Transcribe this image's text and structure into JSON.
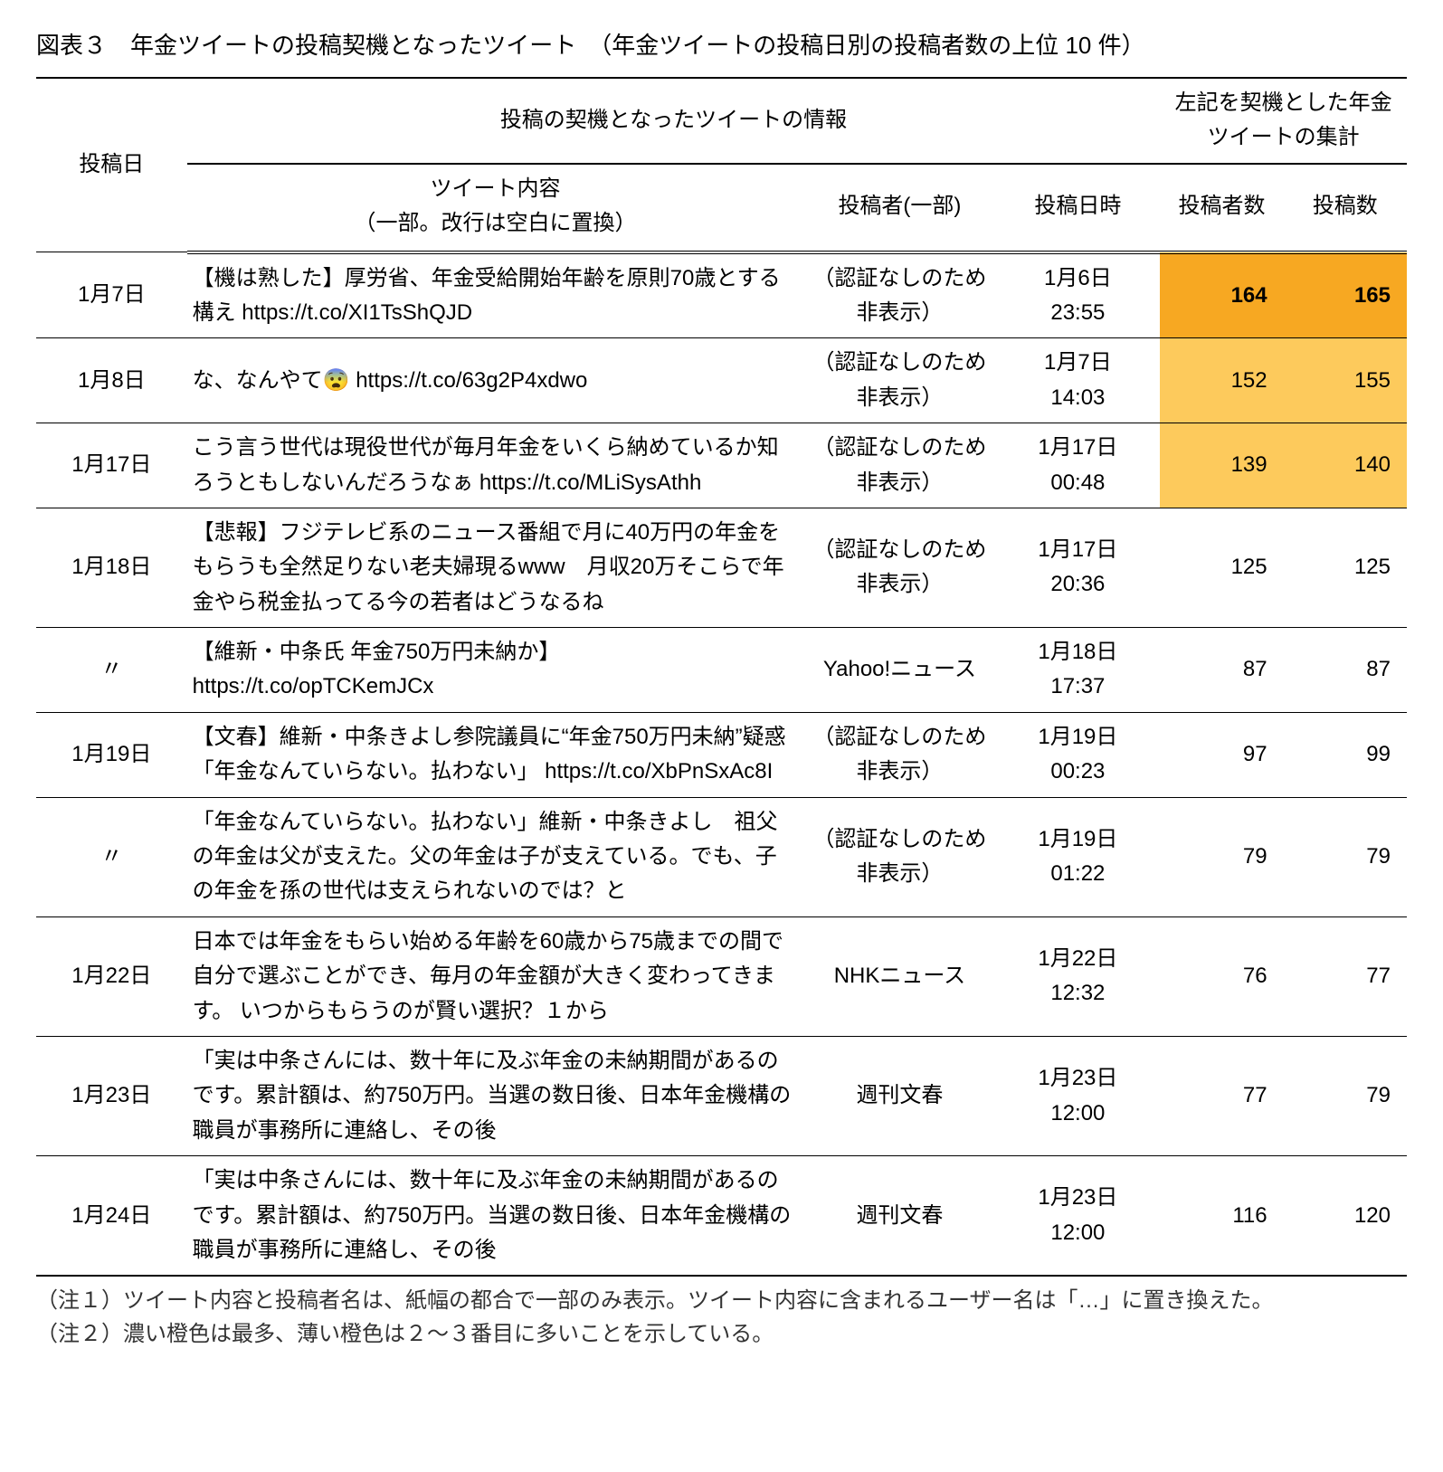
{
  "title": "図表３　年金ツイートの投稿契機となったツイート　（年金ツイートの投稿日別の投稿者数の上位 10 件）",
  "headers": {
    "post_date": "投稿日",
    "info_group": "投稿の契機となったツイートの情報",
    "stats_group": "左記を契機とした年金ツイートの集計",
    "tweet_content": "ツイート内容\n（一部。改行は空白に置換）",
    "author": "投稿者(一部)",
    "post_time": "投稿日時",
    "posters": "投稿者数",
    "posts": "投稿数"
  },
  "rows": [
    {
      "date": "1月7日",
      "tweet": "【機は熟した】厚労省、年金受給開始年齢を原則70歳とする構え https://t.co/XI1TsShQJD",
      "author": "（認証なしのため非表示）",
      "time": "1月6日\n23:55",
      "posters": "164",
      "posts": "165",
      "highlight": "dark"
    },
    {
      "date": "1月8日",
      "tweet": "な、なんやて😨 https://t.co/63g2P4xdwo",
      "author": "（認証なしのため非表示）",
      "time": "1月7日\n14:03",
      "posters": "152",
      "posts": "155",
      "highlight": "light"
    },
    {
      "date": "1月17日",
      "tweet": "こう言う世代は現役世代が毎月年金をいくら納めているか知ろうともしないんだろうなぁ https://t.co/MLiSysAthh",
      "author": "（認証なしのため非表示）",
      "time": "1月17日\n00:48",
      "posters": "139",
      "posts": "140",
      "highlight": "light"
    },
    {
      "date": "1月18日",
      "tweet": "【悲報】フジテレビ系のニュース番組で月に40万円の年金をもらうも全然足りない老夫婦現るwww　月収20万そこらで年金やら税金払ってる今の若者はどうなるね",
      "author": "（認証なしのため非表示）",
      "time": "1月17日\n20:36",
      "posters": "125",
      "posts": "125",
      "highlight": "none"
    },
    {
      "date": "〃",
      "tweet": "【維新・中条氏 年金750万円未納か】 https://t.co/opTCKemJCx",
      "author": "Yahoo!ニュース",
      "time": "1月18日\n17:37",
      "posters": "87",
      "posts": "87",
      "highlight": "none"
    },
    {
      "date": "1月19日",
      "tweet": "【文春】維新・中条きよし参院議員に“年金750万円未納”疑惑「年金なんていらない。払わない」 https://t.co/XbPnSxAc8I",
      "author": "（認証なしのため非表示）",
      "time": "1月19日\n00:23",
      "posters": "97",
      "posts": "99",
      "highlight": "none"
    },
    {
      "date": "〃",
      "tweet": "「年金なんていらない。払わない」維新・中条きよし　祖父の年金は父が支えた。父の年金は子が支えている。でも、子の年金を孫の世代は支えられないのでは？と",
      "author": "（認証なしのため非表示）",
      "time": "1月19日\n01:22",
      "posters": "79",
      "posts": "79",
      "highlight": "none"
    },
    {
      "date": "1月22日",
      "tweet": "日本では年金をもらい始める年齢を60歳から75歳までの間で自分で選ぶことができ、毎月の年金額が大きく変わってきます。 いつからもらうのが賢い選択？１から",
      "author": "NHKニュース",
      "time": "1月22日\n12:32",
      "posters": "76",
      "posts": "77",
      "highlight": "none"
    },
    {
      "date": "1月23日",
      "tweet": "「実は中条さんには、数十年に及ぶ年金の未納期間があるのです。累計額は、約750万円。当選の数日後、日本年金機構の職員が事務所に連絡し、その後",
      "author": "週刊文春",
      "time": "1月23日\n12:00",
      "posters": "77",
      "posts": "79",
      "highlight": "none"
    },
    {
      "date": "1月24日",
      "tweet": "「実は中条さんには、数十年に及ぶ年金の未納期間があるのです。累計額は、約750万円。当選の数日後、日本年金機構の職員が事務所に連絡し、その後",
      "author": "週刊文春",
      "time": "1月23日\n12:00",
      "posters": "116",
      "posts": "120",
      "highlight": "none"
    }
  ],
  "notes": {
    "n1": "（注１）ツイート内容と投稿者名は、紙幅の都合で一部のみ表示。ツイート内容に含まれるユーザー名は「…」に置き換えた。",
    "n2": "（注２）濃い橙色は最多、薄い橙色は２～３番目に多いことを示している。"
  },
  "styling": {
    "highlight_dark_color": "#f7a822",
    "highlight_light_color": "#fdca5c",
    "border_color": "#000000",
    "background_color": "#ffffff",
    "text_color": "#000000",
    "title_fontsize": 26,
    "body_fontsize": 24,
    "note_color": "#333333",
    "column_widths_pct": [
      11,
      45,
      14,
      12,
      9,
      9
    ]
  }
}
